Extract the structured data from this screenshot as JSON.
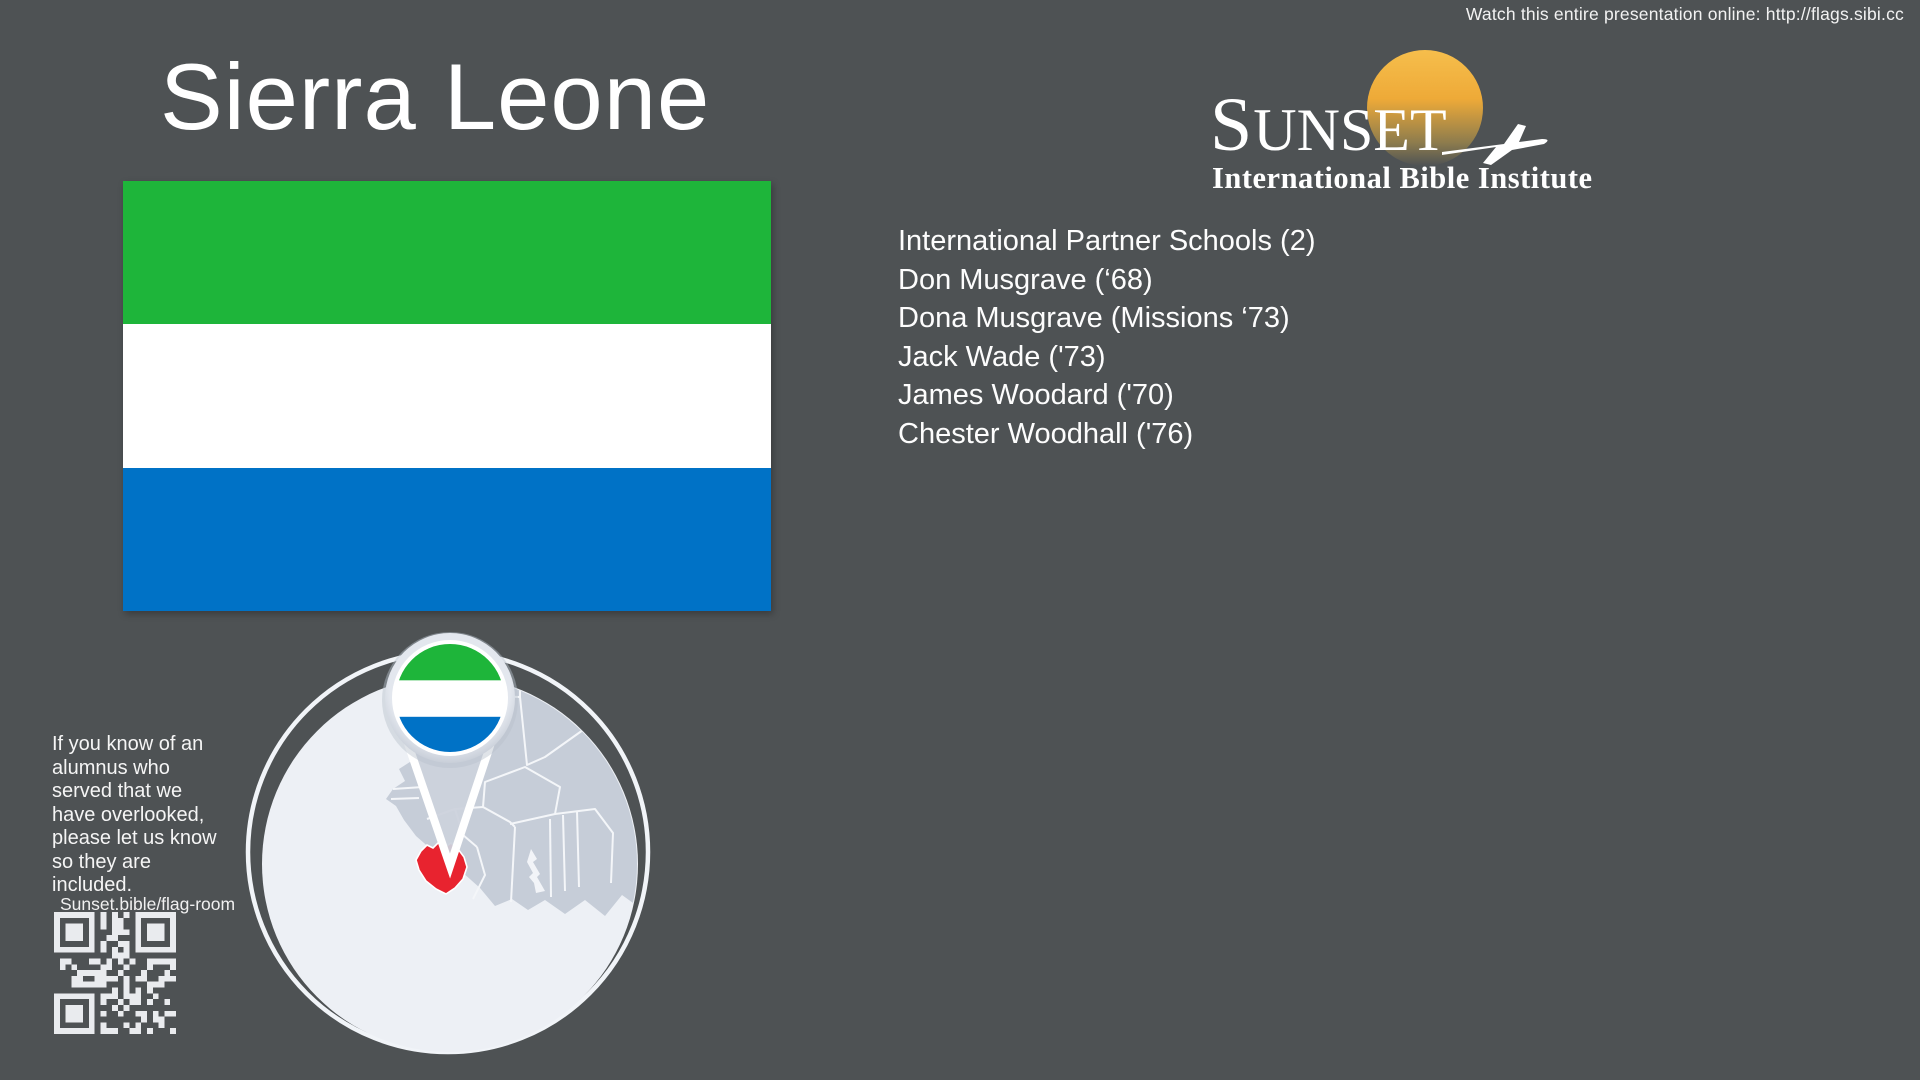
{
  "slide": {
    "background_color": "#4e5254"
  },
  "top_bar": {
    "watch_online_text": "Watch this entire presentation online: http://flags.sibi.cc"
  },
  "country": {
    "title": "Sierra Leone"
  },
  "flag": {
    "green": "#1EB53A",
    "white": "#FFFFFF",
    "blue": "#0072C6"
  },
  "logo": {
    "brand_initial": "S",
    "brand_rest": "UNSET",
    "subtitle": "International Bible Institute",
    "sun_color": "#F0AE3C"
  },
  "alumni_list": [
    "International Partner Schools (2)",
    "Don Musgrave (‘68)",
    "Dona Musgrave (Missions ‘73)",
    "Jack Wade ('73)",
    "James Woodard ('70)",
    "Chester Woodhall ('76)"
  ],
  "footer_note": {
    "text": "If you know of an alumnus who served that we have overlooked, please let us know so they are included.",
    "link_text": "Sunset.bible/flag-room"
  },
  "map": {
    "highlight_color": "#E8232F",
    "land_color": "#C6CDD8",
    "sea_color": "#EDF0F5"
  }
}
